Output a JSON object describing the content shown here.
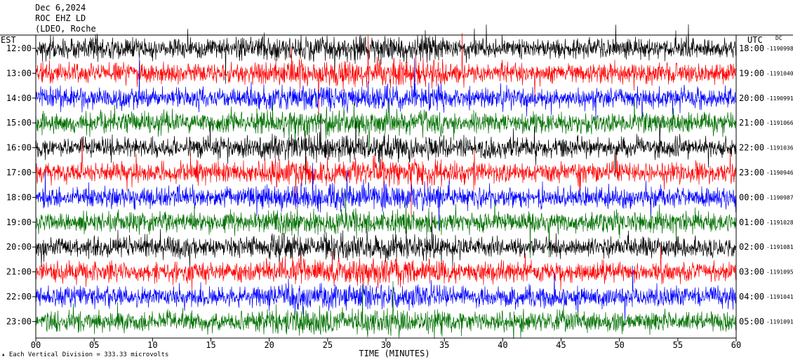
{
  "header": {
    "date": "Dec 6,2024",
    "station": "ROC EHZ LD",
    "network": "(LDEO, Roche"
  },
  "left_tz_label": "EST",
  "right_tz_label": "UTC",
  "dc_label": "DC",
  "footer_note": "Each Vertical Division =  333.33 microvolts",
  "colors": {
    "background": "#ffffff",
    "black": "#000000",
    "red": "#ff0000",
    "blue": "#0000ff",
    "green": "#007000",
    "axis": "#000000"
  },
  "chart_data": {
    "type": "line",
    "title": "",
    "xlabel": "TIME (MINUTES)",
    "xlim": [
      0,
      60
    ],
    "x_ticks": [
      "00",
      "05",
      "10",
      "15",
      "20",
      "25",
      "30",
      "35",
      "40",
      "45",
      "50",
      "55",
      "60"
    ],
    "x_tick_values": [
      0,
      5,
      10,
      15,
      20,
      25,
      30,
      35,
      40,
      45,
      50,
      55,
      60
    ],
    "color_cycle": [
      "black",
      "red",
      "blue",
      "green"
    ],
    "rows": [
      {
        "left": "12:00",
        "right": "18:00",
        "dc": "1190998"
      },
      {
        "left": "13:00",
        "right": "19:00",
        "dc": "1191040"
      },
      {
        "left": "14:00",
        "right": "20:00",
        "dc": "1190991"
      },
      {
        "left": "15:00",
        "right": "21:00",
        "dc": "1191066"
      },
      {
        "left": "16:00",
        "right": "22:00",
        "dc": "1191036"
      },
      {
        "left": "17:00",
        "right": "23:00",
        "dc": "1190946"
      },
      {
        "left": "18:00",
        "right": "00:00",
        "dc": "1190987"
      },
      {
        "left": "19:00",
        "right": "01:00",
        "dc": "1191028"
      },
      {
        "left": "20:00",
        "right": "02:00",
        "dc": "1191081"
      },
      {
        "left": "21:00",
        "right": "03:00",
        "dc": "1191095"
      },
      {
        "left": "22:00",
        "right": "04:00",
        "dc": "1191041"
      },
      {
        "left": "23:00",
        "right": "05:00",
        "dc": "1191091"
      }
    ]
  }
}
